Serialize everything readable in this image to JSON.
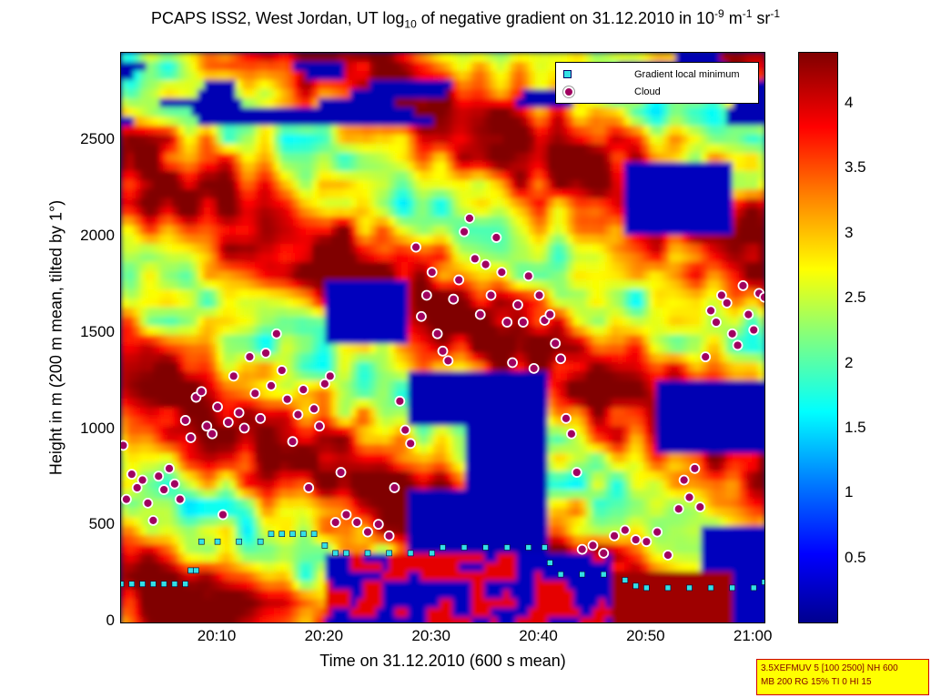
{
  "title": {
    "main": "PCAPS ISS2, West Jordan, UT log",
    "sub": "10",
    "mid": " of negative gradient on 31.12.2010 in 10",
    "sup1": "-9",
    "unit1": " m",
    "sup2": "-1",
    "unit2": " sr",
    "sup3": "-1"
  },
  "info_box": {
    "line1": "3.5XEFMUV 5 [100 2500] NH 600",
    "line2": "MB 200 RG 15% TI 0 HI 15"
  },
  "colors": {
    "background_low": "#00148c",
    "gradient_marker": "#33e0e6",
    "cloud_marker": "#a00060",
    "info_box_bg": "#ffff00"
  },
  "chart_data": {
    "type": "heatmap",
    "xlabel": "Time on 31.12.2010 (600 s mean)",
    "ylabel": "Height in m (200 m mean, tilted by 1°)",
    "x_ticks": [
      "20:10",
      "20:20",
      "20:30",
      "20:40",
      "20:50",
      "21:00"
    ],
    "x_tick_minutes": [
      10,
      20,
      30,
      40,
      50,
      60
    ],
    "xlim_minutes_after_2000": [
      1,
      61
    ],
    "y_ticks": [
      "0",
      "500",
      "1000",
      "1500",
      "2000",
      "2500"
    ],
    "y_tick_values": [
      0,
      500,
      1000,
      1500,
      2000,
      2500
    ],
    "ylim": [
      0,
      2960
    ],
    "colorbar": {
      "ticks": [
        "0.5",
        "1",
        "1.5",
        "2",
        "2.5",
        "3",
        "3.5",
        "4"
      ],
      "tick_values": [
        0.5,
        1,
        1.5,
        2,
        2.5,
        3,
        3.5,
        4
      ],
      "range": [
        0,
        4.4
      ],
      "colormap": "jet"
    },
    "legend_position": "top-right",
    "series": [
      {
        "name": "Gradient local minimum",
        "marker": "square",
        "color": "#33e0e6",
        "points": [
          [
            1,
            200
          ],
          [
            2,
            200
          ],
          [
            3,
            200
          ],
          [
            4,
            200
          ],
          [
            5,
            200
          ],
          [
            6,
            200
          ],
          [
            7,
            200
          ],
          [
            7.5,
            270
          ],
          [
            8,
            270
          ],
          [
            8.5,
            420
          ],
          [
            10,
            420
          ],
          [
            12,
            420
          ],
          [
            14,
            420
          ],
          [
            15,
            460
          ],
          [
            16,
            460
          ],
          [
            17,
            460
          ],
          [
            18,
            460
          ],
          [
            19,
            460
          ],
          [
            20,
            400
          ],
          [
            21,
            360
          ],
          [
            22,
            360
          ],
          [
            24,
            360
          ],
          [
            26,
            360
          ],
          [
            28,
            360
          ],
          [
            30,
            360
          ],
          [
            31,
            390
          ],
          [
            33,
            390
          ],
          [
            35,
            390
          ],
          [
            37,
            390
          ],
          [
            39,
            390
          ],
          [
            40.5,
            390
          ],
          [
            41,
            310
          ],
          [
            42,
            250
          ],
          [
            44,
            250
          ],
          [
            46,
            250
          ],
          [
            48,
            220
          ],
          [
            49,
            190
          ],
          [
            50,
            180
          ],
          [
            52,
            180
          ],
          [
            54,
            180
          ],
          [
            56,
            180
          ],
          [
            58,
            180
          ],
          [
            60,
            180
          ],
          [
            61,
            210
          ]
        ]
      },
      {
        "name": "Cloud",
        "marker": "circle",
        "color": "#a00060",
        "points": [
          [
            1.2,
            920
          ],
          [
            1.5,
            640
          ],
          [
            2,
            770
          ],
          [
            2.5,
            700
          ],
          [
            3,
            740
          ],
          [
            3.5,
            620
          ],
          [
            4,
            530
          ],
          [
            4.5,
            760
          ],
          [
            5,
            690
          ],
          [
            5.5,
            800
          ],
          [
            6,
            720
          ],
          [
            6.5,
            640
          ],
          [
            7,
            1050
          ],
          [
            7.5,
            960
          ],
          [
            8,
            1170
          ],
          [
            8.5,
            1200
          ],
          [
            9,
            1020
          ],
          [
            9.5,
            980
          ],
          [
            10,
            1120
          ],
          [
            10.5,
            560
          ],
          [
            11,
            1040
          ],
          [
            11.5,
            1280
          ],
          [
            12,
            1090
          ],
          [
            12.5,
            1010
          ],
          [
            13,
            1380
          ],
          [
            13.5,
            1190
          ],
          [
            14,
            1060
          ],
          [
            14.5,
            1400
          ],
          [
            15,
            1230
          ],
          [
            15.5,
            1500
          ],
          [
            16,
            1310
          ],
          [
            16.5,
            1160
          ],
          [
            17,
            940
          ],
          [
            17.5,
            1080
          ],
          [
            18,
            1210
          ],
          [
            18.5,
            700
          ],
          [
            19,
            1110
          ],
          [
            19.5,
            1020
          ],
          [
            20,
            1240
          ],
          [
            20.5,
            1280
          ],
          [
            21,
            520
          ],
          [
            21.5,
            780
          ],
          [
            22,
            560
          ],
          [
            23,
            520
          ],
          [
            24,
            470
          ],
          [
            25,
            510
          ],
          [
            26,
            450
          ],
          [
            26.5,
            700
          ],
          [
            27,
            1150
          ],
          [
            27.5,
            1000
          ],
          [
            28,
            930
          ],
          [
            28.5,
            1950
          ],
          [
            29,
            1590
          ],
          [
            29.5,
            1700
          ],
          [
            30,
            1820
          ],
          [
            30.5,
            1500
          ],
          [
            31,
            1410
          ],
          [
            31.5,
            1360
          ],
          [
            32,
            1680
          ],
          [
            32.5,
            1780
          ],
          [
            33,
            2030
          ],
          [
            33.5,
            2100
          ],
          [
            34,
            1890
          ],
          [
            34.5,
            1600
          ],
          [
            35,
            1860
          ],
          [
            35.5,
            1700
          ],
          [
            36,
            2000
          ],
          [
            36.5,
            1820
          ],
          [
            37,
            1560
          ],
          [
            37.5,
            1350
          ],
          [
            38,
            1650
          ],
          [
            38.5,
            1560
          ],
          [
            39,
            1800
          ],
          [
            39.5,
            1320
          ],
          [
            40,
            1700
          ],
          [
            40.5,
            1570
          ],
          [
            41,
            1600
          ],
          [
            41.5,
            1450
          ],
          [
            42,
            1370
          ],
          [
            42.5,
            1060
          ],
          [
            43,
            980
          ],
          [
            43.5,
            780
          ],
          [
            44,
            380
          ],
          [
            45,
            400
          ],
          [
            46,
            360
          ],
          [
            47,
            450
          ],
          [
            48,
            480
          ],
          [
            49,
            430
          ],
          [
            50,
            420
          ],
          [
            51,
            470
          ],
          [
            52,
            350
          ],
          [
            53,
            590
          ],
          [
            53.5,
            740
          ],
          [
            54,
            650
          ],
          [
            54.5,
            800
          ],
          [
            55,
            600
          ],
          [
            55.5,
            1380
          ],
          [
            56,
            1620
          ],
          [
            56.5,
            1560
          ],
          [
            57,
            1700
          ],
          [
            57.5,
            1660
          ],
          [
            58,
            1500
          ],
          [
            58.5,
            1440
          ],
          [
            59,
            1750
          ],
          [
            59.5,
            1600
          ],
          [
            60,
            1520
          ],
          [
            60.5,
            1710
          ],
          [
            61,
            1690
          ]
        ]
      }
    ]
  }
}
